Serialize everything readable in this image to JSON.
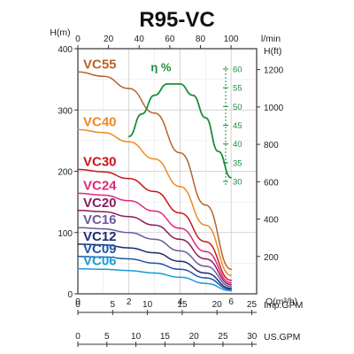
{
  "chart_data": {
    "type": "line",
    "title": "R95-VC",
    "unit_labels": {
      "h_m": "H(m)",
      "h_ft": "H(ft)",
      "l_min": "l/min",
      "q": "Q(m³/h)",
      "imp_gpm": "Imp.GPM",
      "us_gpm": "US.GPM",
      "efficiency": "η %"
    },
    "axes": {
      "q_m3h": {
        "range": [
          0,
          7
        ],
        "ticks": [
          "0",
          "2",
          "4",
          "6"
        ]
      },
      "l_min": {
        "range": [
          0,
          116.7
        ],
        "ticks": [
          "0",
          "20",
          "40",
          "60",
          "80",
          "100"
        ]
      },
      "h_m": {
        "range": [
          0,
          400
        ],
        "ticks": [
          "0",
          "100",
          "200",
          "300",
          "400"
        ]
      },
      "h_ft": {
        "range": [
          0,
          1312
        ],
        "ticks": [
          "200",
          "400",
          "600",
          "800",
          "1000",
          "1200"
        ]
      },
      "efficiency_pct": {
        "range": [
          30,
          60
        ],
        "ticks": [
          "30",
          "35",
          "40",
          "45",
          "50",
          "55",
          "60"
        ]
      },
      "imp_gpm": {
        "range": [
          0,
          25.7
        ],
        "ticks": [
          "0",
          "5",
          "10",
          "15",
          "20",
          "25"
        ]
      },
      "us_gpm": {
        "range": [
          0,
          30.8
        ],
        "ticks": [
          "0",
          "5",
          "10",
          "15",
          "20",
          "25",
          "30"
        ]
      }
    },
    "grid": true,
    "series": [
      {
        "name": "VC55",
        "color": "#b8632d",
        "x": [
          0,
          1,
          2,
          3,
          4,
          5,
          6
        ],
        "y": [
          362,
          355,
          335,
          295,
          230,
          145,
          40
        ]
      },
      {
        "name": "VC40",
        "color": "#ee8a22",
        "x": [
          0,
          1,
          2,
          3,
          4,
          5,
          6
        ],
        "y": [
          268,
          263,
          248,
          220,
          175,
          112,
          30
        ]
      },
      {
        "name": "VC30",
        "color": "#c8161d",
        "x": [
          0,
          1,
          2,
          3,
          4,
          5,
          6
        ],
        "y": [
          203,
          199,
          188,
          167,
          132,
          85,
          22
        ]
      },
      {
        "name": "VC24",
        "color": "#e0297c",
        "x": [
          0,
          1,
          2,
          3,
          4,
          5,
          6
        ],
        "y": [
          164,
          161,
          152,
          135,
          107,
          69,
          18
        ]
      },
      {
        "name": "VC20",
        "color": "#8a1c5c",
        "x": [
          0,
          1,
          2,
          3,
          4,
          5,
          6
        ],
        "y": [
          136,
          134,
          126,
          112,
          89,
          57,
          15
        ]
      },
      {
        "name": "VC16",
        "color": "#6c5a9e",
        "x": [
          0,
          1,
          2,
          3,
          4,
          5,
          6
        ],
        "y": [
          108,
          106,
          100,
          89,
          70,
          45,
          12
        ]
      },
      {
        "name": "VC12",
        "color": "#1b2d6e",
        "x": [
          0,
          1,
          2,
          3,
          4,
          5,
          6
        ],
        "y": [
          81,
          80,
          75,
          67,
          53,
          34,
          9
        ]
      },
      {
        "name": "VC09",
        "color": "#1f55a6",
        "x": [
          0,
          1,
          2,
          3,
          4,
          5,
          6
        ],
        "y": [
          61,
          60,
          57,
          50,
          40,
          26,
          7
        ]
      },
      {
        "name": "VC06",
        "color": "#1b9ad6",
        "x": [
          0,
          1,
          2,
          3,
          4,
          5,
          6
        ],
        "y": [
          41,
          40,
          38,
          34,
          27,
          17,
          5
        ]
      },
      {
        "name": "η %",
        "color": "#1a8f3a",
        "axis": "efficiency_pct",
        "x": [
          2,
          2.5,
          3,
          3.5,
          4,
          4.5,
          5,
          5.5,
          6
        ],
        "y": [
          42,
          48,
          53,
          56,
          56,
          53,
          47,
          38,
          31
        ]
      }
    ]
  }
}
